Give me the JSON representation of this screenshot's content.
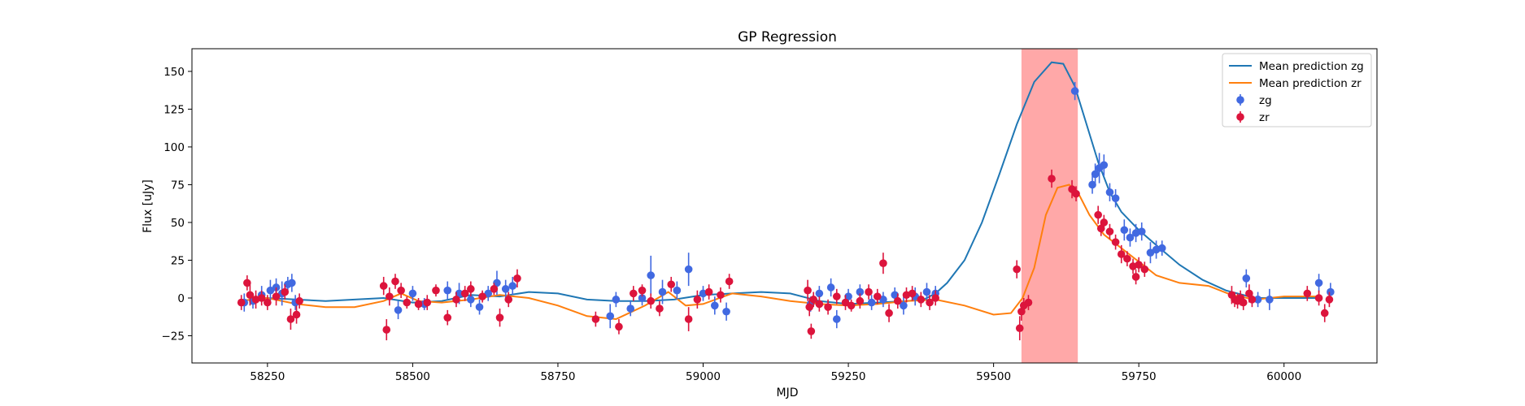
{
  "chart_data": {
    "type": "scatter",
    "title": "GP Regression",
    "xlabel": "MJD",
    "ylabel": "Flux [uJy]",
    "xlim": [
      58120,
      60160
    ],
    "ylim": [
      -43,
      165
    ],
    "xticks": [
      58250,
      58500,
      58750,
      59000,
      59250,
      59500,
      59750,
      60000
    ],
    "yticks": [
      -25,
      0,
      25,
      50,
      75,
      100,
      125,
      150
    ],
    "grid": false,
    "legend_position": "upper right",
    "highlight_band": {
      "x": [
        59548,
        59645
      ],
      "color": "#ff9999"
    },
    "series": [
      {
        "name": "Mean prediction zg",
        "kind": "line",
        "color": "#1f77b4",
        "points": [
          [
            58200,
            -2
          ],
          [
            58250,
            0
          ],
          [
            58300,
            -1
          ],
          [
            58350,
            -2
          ],
          [
            58400,
            -1
          ],
          [
            58450,
            0
          ],
          [
            58500,
            -3
          ],
          [
            58550,
            -2
          ],
          [
            58600,
            2
          ],
          [
            58650,
            1
          ],
          [
            58700,
            4
          ],
          [
            58750,
            3
          ],
          [
            58800,
            -1
          ],
          [
            58850,
            -2
          ],
          [
            58900,
            -2
          ],
          [
            58950,
            -1
          ],
          [
            59000,
            2
          ],
          [
            59050,
            3
          ],
          [
            59100,
            4
          ],
          [
            59150,
            3
          ],
          [
            59200,
            -2
          ],
          [
            59250,
            -4
          ],
          [
            59300,
            -3
          ],
          [
            59350,
            -2
          ],
          [
            59380,
            -1
          ],
          [
            59400,
            3
          ],
          [
            59420,
            10
          ],
          [
            59450,
            25
          ],
          [
            59480,
            50
          ],
          [
            59510,
            82
          ],
          [
            59540,
            115
          ],
          [
            59570,
            143
          ],
          [
            59600,
            156
          ],
          [
            59620,
            155
          ],
          [
            59640,
            140
          ],
          [
            59660,
            115
          ],
          [
            59680,
            90
          ],
          [
            59700,
            70
          ],
          [
            59720,
            57
          ],
          [
            59750,
            45
          ],
          [
            59780,
            35
          ],
          [
            59820,
            22
          ],
          [
            59860,
            12
          ],
          [
            59900,
            5
          ],
          [
            59950,
            0
          ],
          [
            60000,
            0
          ],
          [
            60060,
            0
          ]
        ]
      },
      {
        "name": "Mean prediction zr",
        "kind": "line",
        "color": "#ff7f0e",
        "points": [
          [
            58200,
            -2
          ],
          [
            58250,
            0
          ],
          [
            58300,
            -4
          ],
          [
            58350,
            -6
          ],
          [
            58400,
            -6
          ],
          [
            58450,
            -2
          ],
          [
            58480,
            3
          ],
          [
            58510,
            -2
          ],
          [
            58550,
            -3
          ],
          [
            58600,
            -1
          ],
          [
            58650,
            2
          ],
          [
            58700,
            0
          ],
          [
            58750,
            -5
          ],
          [
            58800,
            -12
          ],
          [
            58850,
            -14
          ],
          [
            58900,
            -5
          ],
          [
            58940,
            4
          ],
          [
            58970,
            -5
          ],
          [
            59000,
            -4
          ],
          [
            59050,
            3
          ],
          [
            59100,
            1
          ],
          [
            59150,
            -2
          ],
          [
            59200,
            -4
          ],
          [
            59250,
            -5
          ],
          [
            59300,
            -4
          ],
          [
            59350,
            -2
          ],
          [
            59400,
            -1
          ],
          [
            59450,
            -5
          ],
          [
            59500,
            -11
          ],
          [
            59530,
            -10
          ],
          [
            59550,
            0
          ],
          [
            59570,
            20
          ],
          [
            59590,
            55
          ],
          [
            59610,
            73
          ],
          [
            59630,
            75
          ],
          [
            59645,
            70
          ],
          [
            59665,
            55
          ],
          [
            59690,
            42
          ],
          [
            59720,
            33
          ],
          [
            59750,
            24
          ],
          [
            59780,
            15
          ],
          [
            59820,
            10
          ],
          [
            59870,
            8
          ],
          [
            59910,
            2
          ],
          [
            59950,
            -1
          ],
          [
            60000,
            1
          ],
          [
            60060,
            1
          ]
        ]
      },
      {
        "name": "zg",
        "kind": "errorbar",
        "color": "#4169e1",
        "points": [
          [
            58210,
            -3,
            6
          ],
          [
            58225,
            -2,
            5
          ],
          [
            58240,
            2,
            6
          ],
          [
            58255,
            5,
            7
          ],
          [
            58265,
            7,
            6
          ],
          [
            58275,
            3,
            8
          ],
          [
            58285,
            9,
            5
          ],
          [
            58292,
            10,
            6
          ],
          [
            58298,
            -3,
            5
          ],
          [
            58475,
            -8,
            6
          ],
          [
            58500,
            3,
            5
          ],
          [
            58520,
            -4,
            4
          ],
          [
            58560,
            5,
            6
          ],
          [
            58580,
            3,
            7
          ],
          [
            58600,
            -1,
            5
          ],
          [
            58615,
            -6,
            5
          ],
          [
            58630,
            3,
            5
          ],
          [
            58645,
            10,
            8
          ],
          [
            58660,
            6,
            6
          ],
          [
            58672,
            8,
            6
          ],
          [
            58840,
            -12,
            8
          ],
          [
            58850,
            -1,
            5
          ],
          [
            58875,
            -7,
            5
          ],
          [
            58895,
            0,
            5
          ],
          [
            58910,
            15,
            13
          ],
          [
            58930,
            4,
            8
          ],
          [
            58955,
            5,
            6
          ],
          [
            58975,
            19,
            11
          ],
          [
            59000,
            3,
            5
          ],
          [
            59020,
            -5,
            6
          ],
          [
            59040,
            -9,
            6
          ],
          [
            59185,
            -4,
            5
          ],
          [
            59200,
            3,
            5
          ],
          [
            59220,
            7,
            6
          ],
          [
            59230,
            -14,
            6
          ],
          [
            59250,
            1,
            5
          ],
          [
            59270,
            4,
            5
          ],
          [
            59290,
            -3,
            5
          ],
          [
            59310,
            -1,
            5
          ],
          [
            59330,
            2,
            5
          ],
          [
            59345,
            -5,
            6
          ],
          [
            59365,
            1,
            6
          ],
          [
            59385,
            4,
            6
          ],
          [
            59400,
            3,
            5
          ],
          [
            59640,
            137,
            6
          ],
          [
            59670,
            75,
            6
          ],
          [
            59675,
            82,
            7
          ],
          [
            59682,
            86,
            10
          ],
          [
            59690,
            88,
            7
          ],
          [
            59700,
            70,
            6
          ],
          [
            59710,
            66,
            6
          ],
          [
            59725,
            45,
            7
          ],
          [
            59735,
            40,
            6
          ],
          [
            59745,
            43,
            6
          ],
          [
            59755,
            44,
            6
          ],
          [
            59770,
            30,
            7
          ],
          [
            59780,
            32,
            6
          ],
          [
            59790,
            33,
            5
          ],
          [
            59935,
            13,
            6
          ],
          [
            59955,
            -1,
            5
          ],
          [
            59975,
            -1,
            7
          ],
          [
            60060,
            10,
            6
          ],
          [
            60080,
            4,
            6
          ]
        ]
      },
      {
        "name": "zr",
        "kind": "errorbar",
        "color": "#dc143c",
        "points": [
          [
            58205,
            -3,
            5
          ],
          [
            58215,
            10,
            5
          ],
          [
            58220,
            2,
            7
          ],
          [
            58230,
            -1,
            6
          ],
          [
            58240,
            0,
            5
          ],
          [
            58250,
            -3,
            5
          ],
          [
            58265,
            1,
            6
          ],
          [
            58280,
            4,
            5
          ],
          [
            58290,
            -14,
            7
          ],
          [
            58300,
            -11,
            6
          ],
          [
            58305,
            -2,
            5
          ],
          [
            58450,
            8,
            6
          ],
          [
            58455,
            -21,
            7
          ],
          [
            58460,
            1,
            6
          ],
          [
            58470,
            11,
            5
          ],
          [
            58480,
            5,
            5
          ],
          [
            58490,
            -3,
            4
          ],
          [
            58510,
            -4,
            4
          ],
          [
            58525,
            -3,
            5
          ],
          [
            58540,
            5,
            4
          ],
          [
            58560,
            -13,
            5
          ],
          [
            58575,
            -1,
            5
          ],
          [
            58590,
            3,
            5
          ],
          [
            58600,
            6,
            5
          ],
          [
            58620,
            1,
            4
          ],
          [
            58640,
            6,
            4
          ],
          [
            58650,
            -13,
            6
          ],
          [
            58665,
            -1,
            5
          ],
          [
            58680,
            13,
            6
          ],
          [
            58815,
            -14,
            5
          ],
          [
            58855,
            -19,
            5
          ],
          [
            58880,
            3,
            5
          ],
          [
            58895,
            5,
            4
          ],
          [
            58910,
            -2,
            5
          ],
          [
            58925,
            -7,
            5
          ],
          [
            58945,
            9,
            5
          ],
          [
            58975,
            -14,
            8
          ],
          [
            58990,
            -1,
            6
          ],
          [
            59010,
            4,
            5
          ],
          [
            59030,
            2,
            5
          ],
          [
            59045,
            11,
            5
          ],
          [
            59180,
            5,
            7
          ],
          [
            59183,
            -6,
            6
          ],
          [
            59186,
            -22,
            5
          ],
          [
            59190,
            -1,
            5
          ],
          [
            59200,
            -4,
            5
          ],
          [
            59215,
            -6,
            5
          ],
          [
            59230,
            1,
            5
          ],
          [
            59245,
            -3,
            5
          ],
          [
            59255,
            -5,
            4
          ],
          [
            59270,
            -2,
            5
          ],
          [
            59285,
            4,
            5
          ],
          [
            59300,
            1,
            5
          ],
          [
            59310,
            23,
            7
          ],
          [
            59320,
            -10,
            6
          ],
          [
            59335,
            -2,
            5
          ],
          [
            59350,
            2,
            5
          ],
          [
            59360,
            3,
            5
          ],
          [
            59375,
            -1,
            5
          ],
          [
            59390,
            -3,
            5
          ],
          [
            59400,
            0,
            5
          ],
          [
            59540,
            19,
            6
          ],
          [
            59545,
            -20,
            8
          ],
          [
            59548,
            -9,
            6
          ],
          [
            59552,
            -5,
            5
          ],
          [
            59560,
            -3,
            5
          ],
          [
            59600,
            79,
            6
          ],
          [
            59635,
            72,
            6
          ],
          [
            59642,
            69,
            5
          ],
          [
            59680,
            55,
            6
          ],
          [
            59685,
            46,
            5
          ],
          [
            59690,
            50,
            5
          ],
          [
            59700,
            44,
            5
          ],
          [
            59710,
            37,
            5
          ],
          [
            59720,
            29,
            6
          ],
          [
            59730,
            26,
            5
          ],
          [
            59740,
            21,
            5
          ],
          [
            59745,
            14,
            5
          ],
          [
            59750,
            22,
            5
          ],
          [
            59760,
            19,
            5
          ],
          [
            59910,
            2,
            6
          ],
          [
            59915,
            -1,
            5
          ],
          [
            59920,
            -2,
            5
          ],
          [
            59925,
            0,
            5
          ],
          [
            59930,
            -3,
            5
          ],
          [
            59940,
            3,
            6
          ],
          [
            59945,
            -1,
            5
          ],
          [
            60040,
            3,
            5
          ],
          [
            60060,
            0,
            5
          ],
          [
            60070,
            -10,
            6
          ],
          [
            60078,
            -1,
            5
          ]
        ]
      }
    ]
  }
}
